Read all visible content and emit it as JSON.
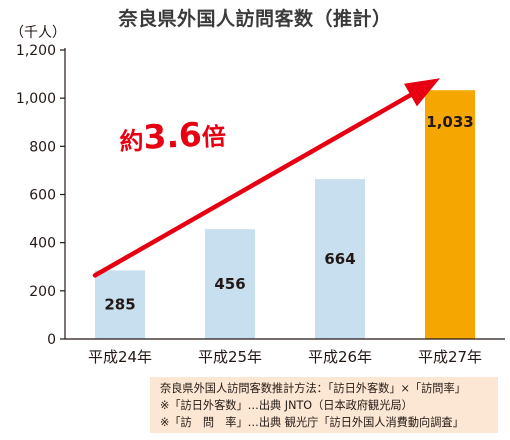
{
  "chart_data": {
    "type": "bar",
    "title": "奈良県外国人訪問客数（推計）",
    "unit_label": "（千人）",
    "categories": [
      "平成24年",
      "平成25年",
      "平成26年",
      "平成27年"
    ],
    "values": [
      285,
      456,
      664,
      1033
    ],
    "value_labels": [
      "285",
      "456",
      "664",
      "1,033"
    ],
    "y_ticks": [
      "0",
      "200",
      "400",
      "600",
      "800",
      "1,000",
      "1,200"
    ],
    "ylim": [
      0,
      1200
    ],
    "grid": false,
    "xlabel": "",
    "ylabel": "",
    "bar_colors": [
      "#c7dfee",
      "#c7dfee",
      "#c7dfee",
      "#f5a600"
    ],
    "trend_arrow": {
      "from": 285,
      "to": 1033,
      "color": "#e60012"
    },
    "annotation": {
      "prefix": "約",
      "number": "3.6",
      "suffix": "倍"
    }
  },
  "notes": [
    "奈良県外国人訪問客数推計方法：「訪日外客数」×「訪問率」",
    "※「訪日外客数」…出典 JNTO（日本政府観光局）",
    "※「訪　問　率」…出典 観光庁「訪日外国人消費動向調査」"
  ],
  "colors": {
    "accent": "#e60012",
    "highlight_bar": "#f5a600",
    "bar": "#c7dfee",
    "note_bg": "#fbe7d3"
  }
}
